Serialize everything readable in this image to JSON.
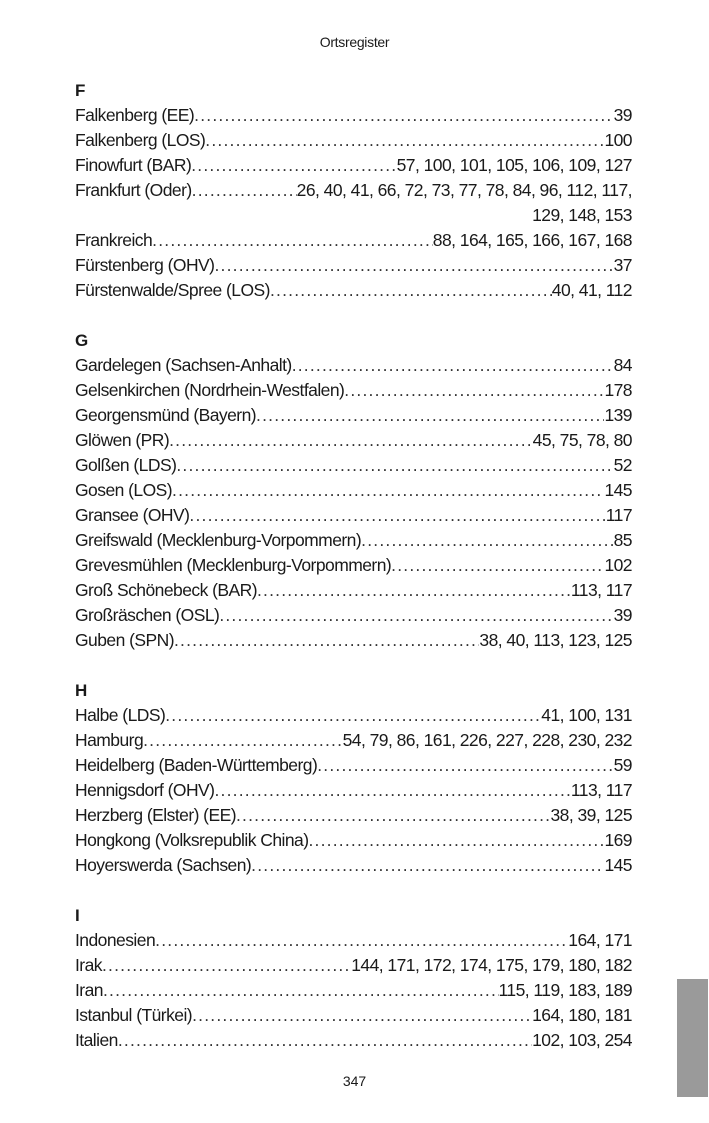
{
  "header": {
    "title": "Ortsregister"
  },
  "sections": [
    {
      "letter": "F",
      "entries": [
        {
          "name": "Falkenberg (EE)",
          "pages": "39"
        },
        {
          "name": "Falkenberg (LOS)",
          "pages": "100"
        },
        {
          "name": "Finowfurt (BAR)",
          "pages": "57, 100, 101, 105, 106, 109, 127"
        },
        {
          "name": "Frankfurt (Oder)",
          "pages": "26, 40, 41, 66, 72, 73, 77, 78, 84, 96, 112, 117,",
          "continuation": "129, 148, 153"
        },
        {
          "name": "Frankreich",
          "pages": "88, 164, 165, 166, 167, 168"
        },
        {
          "name": "Fürstenberg (OHV)",
          "pages": "37"
        },
        {
          "name": "Fürstenwalde/Spree (LOS)",
          "pages": "40, 41, 112"
        }
      ]
    },
    {
      "letter": "G",
      "entries": [
        {
          "name": "Gardelegen (Sachsen-Anhalt)",
          "pages": "84"
        },
        {
          "name": "Gelsenkirchen (Nordrhein-Westfalen)",
          "pages": "178"
        },
        {
          "name": "Georgensmünd (Bayern)",
          "pages": "139"
        },
        {
          "name": "Glöwen (PR)",
          "pages": "45, 75, 78, 80"
        },
        {
          "name": "Golßen (LDS)",
          "pages": "52"
        },
        {
          "name": "Gosen (LOS)",
          "pages": "145"
        },
        {
          "name": "Gransee (OHV)",
          "pages": "117"
        },
        {
          "name": "Greifswald (Mecklenburg-Vorpommern)",
          "pages": "85"
        },
        {
          "name": "Grevesmühlen (Mecklenburg-Vorpommern)",
          "pages": "102"
        },
        {
          "name": "Groß Schönebeck (BAR)",
          "pages": "113, 117"
        },
        {
          "name": "Großräschen (OSL)",
          "pages": "39"
        },
        {
          "name": "Guben (SPN)",
          "pages": "38, 40, 113, 123, 125"
        }
      ]
    },
    {
      "letter": "H",
      "entries": [
        {
          "name": "Halbe (LDS)",
          "pages": "41, 100, 131"
        },
        {
          "name": "Hamburg",
          "pages": "54, 79, 86, 161, 226, 227, 228, 230, 232"
        },
        {
          "name": "Heidelberg (Baden-Württemberg)",
          "pages": "59"
        },
        {
          "name": "Hennigsdorf (OHV)",
          "pages": "113, 117"
        },
        {
          "name": "Herzberg (Elster) (EE)",
          "pages": "38, 39, 125"
        },
        {
          "name": "Hongkong (Volksrepublik China)",
          "pages": "169"
        },
        {
          "name": "Hoyerswerda (Sachsen)",
          "pages": "145"
        }
      ]
    },
    {
      "letter": "I",
      "entries": [
        {
          "name": "Indonesien",
          "pages": "164, 171"
        },
        {
          "name": "Irak",
          "pages": "144, 171, 172, 174, 175, 179, 180, 182"
        },
        {
          "name": "Iran",
          "pages": "115, 119, 183, 189"
        },
        {
          "name": "Istanbul (Türkei)",
          "pages": "164, 180, 181"
        },
        {
          "name": "Italien",
          "pages": "102, 103, 254"
        }
      ]
    }
  ],
  "footer": {
    "page_number": "347"
  },
  "colors": {
    "thumb_tab": "#9a9a9a"
  }
}
